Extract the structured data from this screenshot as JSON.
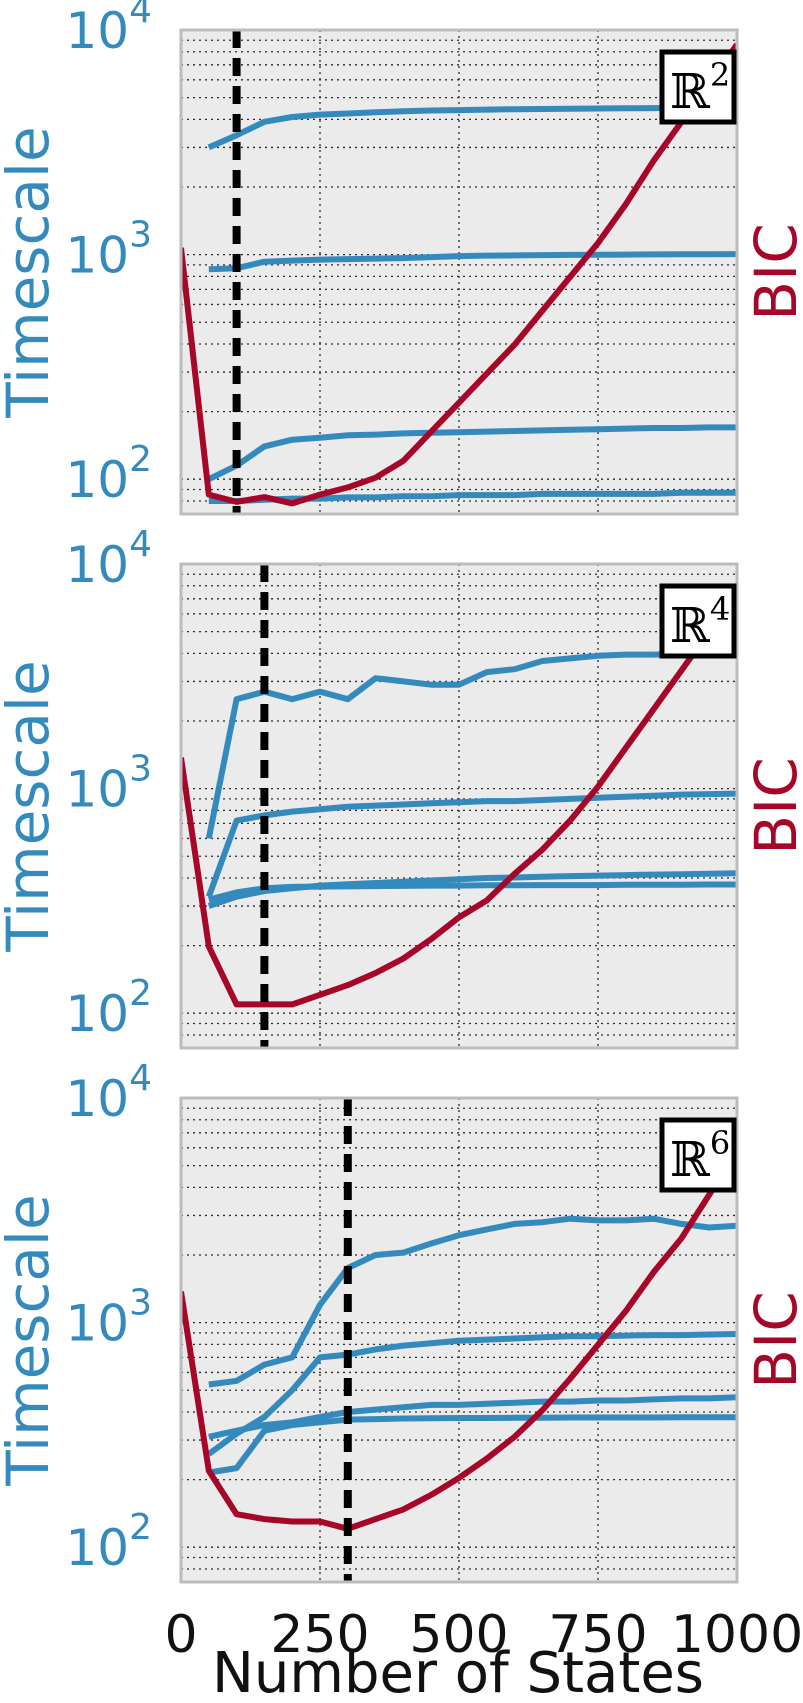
{
  "figure": {
    "xlabel": "Number of States",
    "x_ticks": [
      0,
      250,
      500,
      750,
      1000
    ],
    "timescale_color": "#348ABD",
    "bic_color": "#A60628",
    "panel_bg": "#EBEBEB"
  },
  "chart_data": [
    {
      "type": "line",
      "panel_label": "ℝ",
      "panel_label_exponent": "2",
      "ylabel": "Timescale",
      "right_label": "BIC",
      "xlim": [
        0,
        1000
      ],
      "ylim": [
        70,
        10000
      ],
      "yscale": "log",
      "y_ticks": [
        100,
        1000,
        10000
      ],
      "grid": true,
      "vline_x": 100,
      "timescales": [
        {
          "x": [
            50,
            100,
            150,
            200,
            250,
            300,
            350,
            400,
            450,
            500,
            550,
            600,
            650,
            700,
            750,
            800,
            850,
            900,
            950,
            1000
          ],
          "y": [
            3000,
            3400,
            3900,
            4100,
            4200,
            4250,
            4300,
            4350,
            4380,
            4400,
            4420,
            4440,
            4450,
            4460,
            4470,
            4480,
            4490,
            4500,
            4510,
            4520
          ]
        },
        {
          "x": [
            50,
            100,
            150,
            200,
            250,
            300,
            350,
            400,
            450,
            500,
            550,
            600,
            650,
            700,
            750,
            800,
            850,
            900,
            950,
            1000
          ],
          "y": [
            860,
            870,
            930,
            940,
            950,
            955,
            960,
            965,
            975,
            985,
            990,
            992,
            995,
            997,
            999,
            1000,
            1002,
            1003,
            1004,
            1005
          ]
        },
        {
          "x": [
            50,
            100,
            150,
            200,
            250,
            300,
            350,
            400,
            450,
            500,
            550,
            600,
            650,
            700,
            750,
            800,
            850,
            900,
            950,
            1000
          ],
          "y": [
            100,
            115,
            140,
            150,
            153,
            157,
            158,
            160,
            161,
            162,
            163,
            164,
            165,
            166,
            167,
            168,
            169,
            169,
            170,
            170
          ]
        },
        {
          "x": [
            50,
            100,
            150,
            200,
            250,
            300,
            350,
            400,
            450,
            500,
            550,
            600,
            650,
            700,
            750,
            800,
            850,
            900,
            950,
            1000
          ],
          "y": [
            80,
            80,
            81,
            82,
            82,
            83,
            83,
            84,
            84,
            85,
            85,
            85,
            86,
            86,
            86,
            86,
            86,
            87,
            87,
            87
          ]
        }
      ],
      "bic": {
        "x": [
          0,
          50,
          100,
          150,
          200,
          250,
          300,
          350,
          400,
          450,
          500,
          550,
          600,
          650,
          700,
          750,
          800,
          850,
          900,
          950,
          1000
        ],
        "y": [
          0.55,
          0.04,
          0.025,
          0.035,
          0.022,
          0.04,
          0.055,
          0.075,
          0.11,
          0.17,
          0.23,
          0.29,
          0.35,
          0.42,
          0.49,
          0.56,
          0.64,
          0.73,
          0.81,
          0.89,
          0.97
        ]
      }
    },
    {
      "type": "line",
      "panel_label": "ℝ",
      "panel_label_exponent": "4",
      "ylabel": "Timescale",
      "right_label": "BIC",
      "xlim": [
        0,
        1000
      ],
      "ylim": [
        70,
        10000
      ],
      "yscale": "log",
      "y_ticks": [
        100,
        1000,
        10000
      ],
      "grid": true,
      "vline_x": 150,
      "timescales": [
        {
          "x": [
            50,
            100,
            150,
            200,
            250,
            300,
            350,
            400,
            450,
            500,
            550,
            600,
            650,
            700,
            750,
            800,
            850,
            900,
            950,
            1000
          ],
          "y": [
            600,
            2500,
            2700,
            2500,
            2700,
            2500,
            3100,
            3000,
            2900,
            2900,
            3300,
            3400,
            3700,
            3800,
            3900,
            3950,
            3950,
            4000,
            4000,
            4050
          ]
        },
        {
          "x": [
            50,
            100,
            150,
            200,
            250,
            300,
            350,
            400,
            450,
            500,
            550,
            600,
            650,
            700,
            750,
            800,
            850,
            900,
            950,
            1000
          ],
          "y": [
            330,
            720,
            760,
            790,
            810,
            830,
            840,
            850,
            860,
            870,
            880,
            880,
            890,
            900,
            910,
            920,
            930,
            940,
            945,
            950
          ]
        },
        {
          "x": [
            50,
            100,
            150,
            200,
            250,
            300,
            350,
            400,
            450,
            500,
            550,
            600,
            650,
            700,
            750,
            800,
            850,
            900,
            950,
            1000
          ],
          "y": [
            300,
            330,
            350,
            360,
            370,
            375,
            380,
            385,
            390,
            395,
            400,
            402,
            405,
            408,
            410,
            412,
            414,
            416,
            418,
            420
          ]
        },
        {
          "x": [
            50,
            100,
            150,
            200,
            250,
            300,
            350,
            400,
            450,
            500,
            550,
            600,
            650,
            700,
            750,
            800,
            850,
            900,
            950,
            1000
          ],
          "y": [
            320,
            345,
            360,
            365,
            366,
            367,
            368,
            369,
            370,
            370,
            371,
            371,
            372,
            372,
            372,
            373,
            373,
            373,
            374,
            374
          ]
        }
      ],
      "bic": {
        "x": [
          0,
          50,
          100,
          150,
          200,
          250,
          300,
          350,
          400,
          450,
          500,
          550,
          600,
          650,
          700,
          750,
          800,
          850,
          900,
          950,
          1000
        ],
        "y": [
          0.6,
          0.21,
          0.09,
          0.09,
          0.09,
          0.11,
          0.13,
          0.155,
          0.185,
          0.225,
          0.27,
          0.305,
          0.36,
          0.41,
          0.47,
          0.54,
          0.62,
          0.7,
          0.78,
          0.86,
          0.93
        ]
      }
    },
    {
      "type": "line",
      "panel_label": "ℝ",
      "panel_label_exponent": "6",
      "ylabel": "Timescale",
      "right_label": "BIC",
      "xlim": [
        0,
        1000
      ],
      "ylim": [
        70,
        10000
      ],
      "yscale": "log",
      "y_ticks": [
        100,
        1000,
        10000
      ],
      "grid": true,
      "vline_x": 300,
      "timescales": [
        {
          "x": [
            50,
            100,
            150,
            200,
            250,
            300,
            350,
            400,
            450,
            500,
            550,
            600,
            650,
            700,
            750,
            800,
            850,
            900,
            950,
            1000
          ],
          "y": [
            530,
            550,
            650,
            700,
            1200,
            1750,
            2000,
            2050,
            2250,
            2450,
            2600,
            2750,
            2800,
            2900,
            2850,
            2850,
            2900,
            2750,
            2650,
            2700
          ]
        },
        {
          "x": [
            50,
            100,
            150,
            200,
            250,
            300,
            350,
            400,
            450,
            500,
            550,
            600,
            650,
            700,
            750,
            800,
            850,
            900,
            950,
            1000
          ],
          "y": [
            260,
            320,
            380,
            500,
            700,
            720,
            760,
            790,
            810,
            830,
            840,
            850,
            860,
            870,
            870,
            875,
            880,
            880,
            885,
            890
          ]
        },
        {
          "x": [
            50,
            100,
            150,
            200,
            250,
            300,
            350,
            400,
            450,
            500,
            550,
            600,
            650,
            700,
            750,
            800,
            850,
            900,
            950,
            1000
          ],
          "y": [
            310,
            330,
            350,
            360,
            380,
            400,
            410,
            420,
            430,
            430,
            435,
            440,
            445,
            445,
            450,
            450,
            455,
            460,
            460,
            465
          ]
        },
        {
          "x": [
            50,
            100,
            150,
            200,
            250,
            300,
            350,
            400,
            450,
            500,
            550,
            600,
            650,
            700,
            750,
            800,
            850,
            900,
            950,
            1000
          ],
          "y": [
            215,
            225,
            330,
            350,
            360,
            370,
            372,
            374,
            375,
            376,
            376,
            377,
            377,
            378,
            378,
            378,
            378,
            379,
            379,
            379
          ]
        }
      ],
      "bic": {
        "x": [
          0,
          50,
          100,
          150,
          200,
          250,
          300,
          350,
          400,
          450,
          500,
          550,
          600,
          650,
          700,
          750,
          800,
          850,
          900,
          950,
          1000
        ],
        "y": [
          0.6,
          0.23,
          0.14,
          0.13,
          0.125,
          0.125,
          0.11,
          0.13,
          0.15,
          0.18,
          0.215,
          0.255,
          0.3,
          0.355,
          0.42,
          0.49,
          0.56,
          0.64,
          0.71,
          0.8,
          0.89
        ]
      }
    }
  ]
}
